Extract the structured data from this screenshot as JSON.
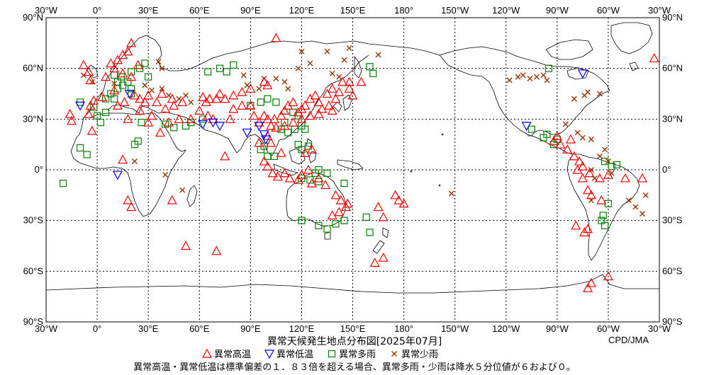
{
  "map": {
    "title": "異常天候発生地点分布図[2025年07月]",
    "credit": "CPD/JMA",
    "lon_labels_top": [
      "30°W",
      "0°",
      "30°E",
      "60°E",
      "90°E",
      "120°E",
      "150°E",
      "180°",
      "150°W",
      "120°W",
      "90°W",
      "60°W",
      "30°W"
    ],
    "lon_labels_bottom": [
      "30°W",
      "0°",
      "30°E",
      "60°E",
      "90°E",
      "120°E",
      "150°E",
      "180°",
      "150°W",
      "120°W",
      "90°W",
      "60°W",
      "30°W"
    ],
    "lat_labels_left": [
      "90°N",
      "60°N",
      "30°N",
      "0°",
      "30°S",
      "60°S",
      "90°S"
    ],
    "lat_labels_right": [
      "90°N",
      "60°N",
      "30°N",
      "0°",
      "30°S",
      "60°S",
      "90°S"
    ],
    "legend": [
      {
        "key": "high_temp",
        "label": "異常高温",
        "symbol": "triangle-up",
        "color": "#ff0000"
      },
      {
        "key": "low_temp",
        "label": "異常低温",
        "symbol": "triangle-down",
        "color": "#0000ff"
      },
      {
        "key": "heavy_rain",
        "label": "異常多雨",
        "symbol": "square",
        "color": "#008000"
      },
      {
        "key": "light_rain",
        "label": "異常少雨",
        "symbol": "cross",
        "color": "#993300"
      }
    ],
    "note": "異常高温・異常低温は標準偏差の１．８３倍を超える場合、異常多雨・少雨は降水５分位値が６および０。",
    "projection": "equirectangular",
    "center_longitude_deg": 150,
    "lon_extent_deg": [
      -30,
      330
    ],
    "lat_extent_deg": [
      -90,
      90
    ],
    "grid": "dotted every 30°",
    "events": {
      "high_temp": [
        [
          -16,
          33
        ],
        [
          -15,
          29
        ],
        [
          -8,
          62
        ],
        [
          -5,
          58
        ],
        [
          -4,
          53
        ],
        [
          -2,
          41
        ],
        [
          -4,
          38
        ],
        [
          3,
          43
        ],
        [
          5,
          55
        ],
        [
          8,
          63
        ],
        [
          12,
          65
        ],
        [
          15,
          68
        ],
        [
          18,
          70
        ],
        [
          20,
          75
        ],
        [
          10,
          60
        ],
        [
          15,
          57
        ],
        [
          20,
          55
        ],
        [
          24,
          62
        ],
        [
          22,
          44
        ],
        [
          25,
          42
        ],
        [
          30,
          44
        ],
        [
          10,
          47
        ],
        [
          12,
          38
        ],
        [
          16,
          40
        ],
        [
          28,
          40
        ],
        [
          35,
          40
        ],
        [
          38,
          45
        ],
        [
          44,
          42
        ],
        [
          50,
          40
        ],
        [
          45,
          38
        ],
        [
          40,
          36
        ],
        [
          32,
          32
        ],
        [
          37,
          22
        ],
        [
          30,
          28
        ],
        [
          55,
          30
        ],
        [
          48,
          30
        ],
        [
          42,
          28
        ],
        [
          25,
          35
        ],
        [
          18,
          30
        ],
        [
          -5,
          33
        ],
        [
          -3,
          23
        ],
        [
          15,
          6
        ],
        [
          18,
          -18
        ],
        [
          20,
          -22
        ],
        [
          44,
          -18
        ],
        [
          52,
          -45
        ],
        [
          70,
          -48
        ],
        [
          60,
          35
        ],
        [
          62,
          43
        ],
        [
          64,
          40
        ],
        [
          66,
          42
        ],
        [
          70,
          42
        ],
        [
          72,
          45
        ],
        [
          75,
          42
        ],
        [
          80,
          44
        ],
        [
          85,
          46
        ],
        [
          90,
          48
        ],
        [
          98,
          52
        ],
        [
          100,
          50
        ],
        [
          105,
          78
        ],
        [
          65,
          32
        ],
        [
          68,
          30
        ],
        [
          78,
          30
        ],
        [
          80,
          36
        ],
        [
          85,
          38
        ],
        [
          90,
          38
        ],
        [
          92,
          32
        ],
        [
          95,
          28
        ],
        [
          98,
          32
        ],
        [
          100,
          30
        ],
        [
          102,
          26
        ],
        [
          104,
          30
        ],
        [
          108,
          32
        ],
        [
          110,
          35
        ],
        [
          112,
          38
        ],
        [
          115,
          40
        ],
        [
          118,
          34
        ],
        [
          120,
          36
        ],
        [
          122,
          38
        ],
        [
          125,
          42
        ],
        [
          128,
          44
        ],
        [
          130,
          40
        ],
        [
          132,
          36
        ],
        [
          135,
          45
        ],
        [
          138,
          48
        ],
        [
          140,
          42
        ],
        [
          142,
          46
        ],
        [
          144,
          52
        ],
        [
          148,
          48
        ],
        [
          150,
          44
        ],
        [
          136,
          38
        ],
        [
          138,
          35
        ],
        [
          130,
          33
        ],
        [
          125,
          32
        ],
        [
          120,
          30
        ],
        [
          115,
          28
        ],
        [
          110,
          26
        ],
        [
          105,
          25
        ],
        [
          100,
          20
        ],
        [
          95,
          16
        ],
        [
          102,
          16
        ],
        [
          98,
          5
        ],
        [
          100,
          2
        ],
        [
          103,
          -2
        ],
        [
          106,
          -4
        ],
        [
          110,
          -2
        ],
        [
          113,
          -5
        ],
        [
          118,
          -6
        ],
        [
          120,
          -3
        ],
        [
          124,
          0
        ],
        [
          126,
          -8
        ],
        [
          130,
          -5
        ],
        [
          134,
          -9
        ],
        [
          122,
          10
        ],
        [
          126,
          12
        ],
        [
          108,
          10
        ],
        [
          75,
          8
        ],
        [
          140,
          -15
        ],
        [
          143,
          -18
        ],
        [
          146,
          -22
        ],
        [
          142,
          -25
        ],
        [
          138,
          -27
        ],
        [
          147,
          -20
        ],
        [
          165,
          -22
        ],
        [
          168,
          -28
        ],
        [
          175,
          -15
        ],
        [
          177,
          -18
        ],
        [
          180,
          -20
        ],
        [
          163,
          -55
        ],
        [
          168,
          -52
        ],
        [
          148,
          52
        ],
        [
          155,
          52
        ],
        [
          -90,
          20
        ],
        [
          -88,
          15
        ],
        [
          -92,
          17
        ],
        [
          -84,
          12
        ],
        [
          -80,
          8
        ],
        [
          -82,
          18
        ],
        [
          -77,
          5
        ],
        [
          -75,
          2
        ],
        [
          -78,
          0
        ],
        [
          -75,
          -5
        ],
        [
          -71,
          -2
        ],
        [
          -65,
          -5
        ],
        [
          -72,
          -12
        ],
        [
          -70,
          -15
        ],
        [
          -60,
          -3
        ],
        [
          -50,
          -5
        ],
        [
          -40,
          -5
        ],
        [
          -64,
          -18
        ],
        [
          -79,
          -33
        ],
        [
          -72,
          -35
        ],
        [
          -74,
          -37
        ],
        [
          -60,
          -63
        ],
        [
          -70,
          -67
        ],
        [
          -72,
          -70
        ],
        [
          -33,
          66
        ]
      ],
      "low_temp": [
        [
          19,
          45
        ],
        [
          -10,
          38
        ],
        [
          98,
          21
        ],
        [
          99,
          18
        ],
        [
          88,
          22
        ],
        [
          95,
          26
        ],
        [
          62,
          27
        ],
        [
          68,
          28
        ],
        [
          72,
          26
        ],
        [
          12,
          -3
        ],
        [
          -108,
          26
        ],
        [
          -75,
          57
        ]
      ],
      "heavy_rain": [
        [
          -20,
          -8
        ],
        [
          -10,
          13
        ],
        [
          -6,
          9
        ],
        [
          -10,
          40
        ],
        [
          -2,
          37
        ],
        [
          0,
          32
        ],
        [
          5,
          34
        ],
        [
          2,
          28
        ],
        [
          5,
          42
        ],
        [
          10,
          42
        ],
        [
          8,
          45
        ],
        [
          12,
          48
        ],
        [
          12,
          52
        ],
        [
          14,
          55
        ],
        [
          10,
          56
        ],
        [
          15,
          50
        ],
        [
          18,
          52
        ],
        [
          20,
          48
        ],
        [
          20,
          58
        ],
        [
          25,
          60
        ],
        [
          28,
          63
        ],
        [
          30,
          55
        ],
        [
          22,
          15
        ],
        [
          24,
          17
        ],
        [
          20,
          45
        ],
        [
          26,
          28
        ],
        [
          40,
          27
        ],
        [
          45,
          25
        ],
        [
          52,
          26
        ],
        [
          55,
          28
        ],
        [
          62,
          30
        ],
        [
          65,
          58
        ],
        [
          72,
          60
        ],
        [
          76,
          58
        ],
        [
          80,
          62
        ],
        [
          90,
          38
        ],
        [
          96,
          40
        ],
        [
          100,
          42
        ],
        [
          105,
          40
        ],
        [
          110,
          28
        ],
        [
          115,
          34
        ],
        [
          118,
          32
        ],
        [
          108,
          24
        ],
        [
          112,
          22
        ],
        [
          116,
          24
        ],
        [
          120,
          26
        ],
        [
          122,
          24
        ],
        [
          118,
          15
        ],
        [
          120,
          12
        ],
        [
          124,
          14
        ],
        [
          98,
          14
        ],
        [
          96,
          12
        ],
        [
          100,
          8
        ],
        [
          104,
          8
        ],
        [
          120,
          -5
        ],
        [
          125,
          -6
        ],
        [
          130,
          -7
        ],
        [
          135,
          -2
        ],
        [
          130,
          0
        ],
        [
          145,
          -8
        ],
        [
          128,
          -2
        ],
        [
          120,
          -30
        ],
        [
          130,
          -33
        ],
        [
          135,
          -35
        ],
        [
          140,
          -32
        ],
        [
          145,
          -30
        ],
        [
          158,
          -28
        ],
        [
          160,
          -37
        ],
        [
          160,
          61
        ],
        [
          162,
          57
        ],
        [
          -95,
          60
        ],
        [
          -105,
          24
        ],
        [
          -98,
          19
        ],
        [
          -96,
          21
        ],
        [
          -92,
          15
        ],
        [
          -90,
          18
        ],
        [
          -60,
          -20
        ],
        [
          -64,
          -30
        ],
        [
          -63,
          -27
        ],
        [
          -62,
          -33
        ],
        [
          -58,
          2
        ],
        [
          -55,
          3
        ],
        [
          -62,
          5
        ]
      ],
      "light_rain": [
        [
          -8,
          56
        ],
        [
          -3,
          52
        ],
        [
          10,
          51
        ],
        [
          28,
          50
        ],
        [
          32,
          47
        ],
        [
          38,
          48
        ],
        [
          42,
          44
        ],
        [
          48,
          42
        ],
        [
          52,
          44
        ],
        [
          55,
          40
        ],
        [
          38,
          60
        ],
        [
          36,
          64
        ],
        [
          22,
          5
        ],
        [
          40,
          -3
        ],
        [
          50,
          -12
        ],
        [
          86,
          56
        ],
        [
          88,
          50
        ],
        [
          95,
          48
        ],
        [
          98,
          54
        ],
        [
          105,
          54
        ],
        [
          110,
          52
        ],
        [
          112,
          48
        ],
        [
          118,
          60
        ],
        [
          120,
          70
        ],
        [
          125,
          63
        ],
        [
          135,
          70
        ],
        [
          138,
          57
        ],
        [
          142,
          55
        ],
        [
          145,
          65
        ],
        [
          148,
          72
        ],
        [
          165,
          68
        ],
        [
          -152,
          -14
        ],
        [
          -118,
          53
        ],
        [
          -113,
          55
        ],
        [
          -110,
          56
        ],
        [
          -106,
          54
        ],
        [
          -102,
          55
        ],
        [
          -98,
          56
        ],
        [
          -96,
          53
        ],
        [
          -72,
          46
        ],
        [
          -74,
          44
        ],
        [
          -80,
          42
        ],
        [
          -85,
          27
        ],
        [
          -78,
          22
        ],
        [
          -75,
          19
        ],
        [
          -70,
          18
        ],
        [
          -62,
          12
        ],
        [
          -65,
          8
        ],
        [
          -60,
          5
        ],
        [
          -58,
          -2
        ],
        [
          -70,
          0
        ],
        [
          -68,
          -5
        ],
        [
          -48,
          -18
        ],
        [
          -44,
          -22
        ],
        [
          -40,
          -26
        ],
        [
          -38,
          -15
        ],
        [
          -70,
          -18
        ],
        [
          -65,
          45
        ]
      ]
    }
  }
}
